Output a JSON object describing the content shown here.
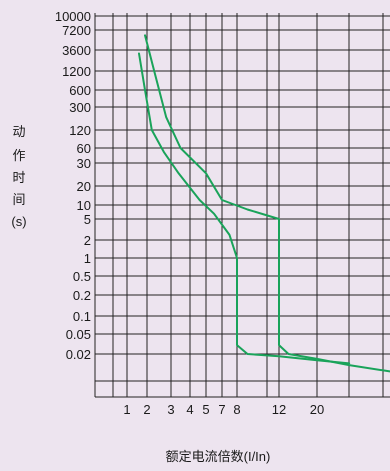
{
  "chart_data": {
    "type": "line",
    "title": "",
    "ylabel": [
      "动",
      "作",
      "时",
      "间",
      "(s)"
    ],
    "xlabel": "额定电流倍数(I/In)",
    "yticks": [
      "10000",
      "7200",
      "3600",
      "1200",
      "600",
      "300",
      "120",
      "60",
      "30",
      "20",
      "10",
      "5",
      "2",
      "1",
      "0.5",
      "0.2",
      "0.1",
      "0.05",
      "0.02"
    ],
    "xticks": [
      "1",
      "2",
      "3",
      "4",
      "5",
      "7",
      "8",
      "12",
      "20"
    ],
    "yscale": "log",
    "grid": true,
    "colors": {
      "curve": "#1aa35a",
      "grid": "#222222",
      "background": "#ede4ef"
    },
    "series": [
      {
        "points": [
          [
            "1.6",
            "3000"
          ],
          [
            "1.9",
            "600"
          ],
          [
            "2.2",
            "120"
          ],
          [
            "2.7",
            "50"
          ],
          [
            "3.4",
            "25"
          ],
          [
            "4.6",
            "12"
          ],
          [
            "6",
            "6.5"
          ],
          [
            "7.5",
            "2.5"
          ],
          [
            "8",
            "1"
          ],
          [
            "8",
            "0.03"
          ],
          [
            "9",
            "0.02"
          ],
          [
            "12",
            "0.018"
          ],
          [
            "20",
            "0.015"
          ],
          [
            "30",
            "0.013"
          ]
        ]
      },
      {
        "points": [
          [
            "1.9",
            "6000"
          ],
          [
            "2.3",
            "1200"
          ],
          [
            "2.8",
            "200"
          ],
          [
            "3.5",
            "60"
          ],
          [
            "5",
            "25"
          ],
          [
            "7",
            "12"
          ],
          [
            "9",
            "8"
          ],
          [
            "12",
            "5"
          ],
          [
            "12",
            "0.03"
          ],
          [
            "14",
            "0.02"
          ],
          [
            "20",
            "0.016"
          ],
          [
            "30",
            "0.012"
          ],
          [
            "50",
            "0.009"
          ]
        ]
      }
    ]
  }
}
